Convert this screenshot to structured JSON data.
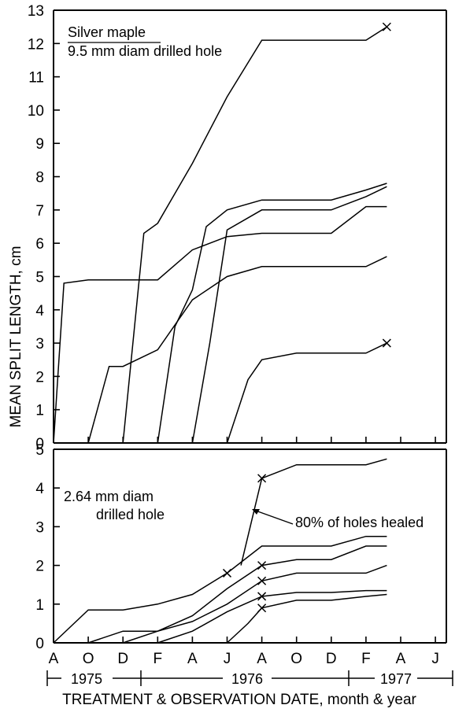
{
  "chart_data": [
    {
      "type": "line",
      "title": "Silver maple",
      "subtitle": "9.5 mm diam drilled hole",
      "ylabel": "MEAN SPLIT LENGTH, cm",
      "ylim": [
        0,
        13
      ],
      "yticks": [
        0,
        1,
        2,
        3,
        4,
        5,
        6,
        7,
        8,
        9,
        10,
        11,
        12,
        13
      ],
      "x_categories": [
        "A",
        "O",
        "D",
        "F",
        "A",
        "J",
        "A",
        "O",
        "D",
        "F",
        "A",
        "J"
      ],
      "series": [
        {
          "x": [
            0,
            0.3,
            1,
            2,
            3,
            4,
            5,
            6,
            7,
            8,
            9,
            9.6
          ],
          "y": [
            0,
            4.8,
            4.9,
            4.9,
            4.9,
            5.8,
            6.2,
            6.3,
            6.3,
            6.3,
            7.1,
            7.1
          ],
          "end_marker": false
        },
        {
          "x": [
            1,
            1.6,
            2,
            3,
            4,
            5,
            6,
            7,
            8,
            9,
            9.6
          ],
          "y": [
            0,
            2.3,
            2.3,
            2.8,
            4.3,
            5.0,
            5.3,
            5.3,
            5.3,
            5.3,
            5.6
          ],
          "end_marker": false
        },
        {
          "x": [
            2,
            2.6,
            3,
            4,
            5,
            6,
            7,
            8,
            9,
            9.6
          ],
          "y": [
            0,
            6.3,
            6.6,
            8.4,
            10.4,
            12.1,
            12.1,
            12.1,
            12.1,
            12.5
          ],
          "end_marker": true
        },
        {
          "x": [
            3,
            3.5,
            4,
            4.4,
            5,
            6,
            7,
            8,
            9,
            9.6
          ],
          "y": [
            0,
            3.5,
            4.6,
            6.5,
            7.0,
            7.3,
            7.3,
            7.3,
            7.6,
            7.8
          ],
          "end_marker": false
        },
        {
          "x": [
            4,
            4.5,
            5,
            6,
            7,
            8,
            9,
            9.6
          ],
          "y": [
            0,
            3.0,
            6.4,
            7.0,
            7.0,
            7.0,
            7.4,
            7.7
          ],
          "end_marker": false
        },
        {
          "x": [
            5,
            5.6,
            6,
            7,
            8,
            9,
            9.6
          ],
          "y": [
            0,
            1.9,
            2.5,
            2.7,
            2.7,
            2.7,
            3.0
          ],
          "end_marker": true
        }
      ]
    },
    {
      "type": "line",
      "title": "2.64 mm diam",
      "subtitle": "drilled hole",
      "annotation": "80% of holes healed",
      "ylim": [
        0,
        5
      ],
      "yticks": [
        0,
        1,
        2,
        3,
        4,
        5
      ],
      "xlabel": "TREATMENT & OBSERVATION DATE, month & year",
      "x_categories": [
        "A",
        "O",
        "D",
        "F",
        "A",
        "J",
        "A",
        "O",
        "D",
        "F",
        "A",
        "J"
      ],
      "years": [
        "1975",
        "1976",
        "1977"
      ],
      "series": [
        {
          "x": [
            0,
            1,
            2,
            3,
            4,
            5,
            6,
            7,
            8,
            9,
            9.6
          ],
          "y": [
            0,
            0.85,
            0.85,
            1.0,
            1.25,
            1.8,
            2.5,
            2.5,
            2.5,
            2.75,
            2.75
          ],
          "markers": [
            5
          ]
        },
        {
          "x": [
            1,
            2,
            3,
            4,
            5,
            6,
            7,
            8,
            9,
            9.6
          ],
          "y": [
            0,
            0.3,
            0.3,
            0.7,
            1.4,
            2.0,
            2.15,
            2.15,
            2.5,
            2.5
          ],
          "markers": [
            5
          ]
        },
        {
          "x": [
            2,
            3,
            4,
            5,
            6,
            7,
            8,
            9,
            9.6
          ],
          "y": [
            0,
            0.3,
            0.55,
            1.0,
            1.6,
            1.8,
            1.8,
            1.8,
            2.0
          ],
          "markers": [
            4
          ]
        },
        {
          "x": [
            3,
            4,
            5,
            6,
            7,
            8,
            9,
            9.6
          ],
          "y": [
            0,
            0.3,
            0.8,
            1.2,
            1.3,
            1.3,
            1.35,
            1.35
          ],
          "markers": [
            3
          ]
        },
        {
          "x": [
            5,
            5.6,
            6,
            7,
            8,
            9,
            9.6
          ],
          "y": [
            0,
            0.5,
            0.9,
            1.1,
            1.1,
            1.2,
            1.25
          ],
          "markers": [
            2
          ]
        },
        {
          "x": [
            5.4,
            6,
            7,
            8,
            9,
            9.6
          ],
          "y": [
            2.0,
            4.25,
            4.6,
            4.6,
            4.6,
            4.75
          ],
          "markers": [
            1
          ]
        }
      ]
    }
  ]
}
